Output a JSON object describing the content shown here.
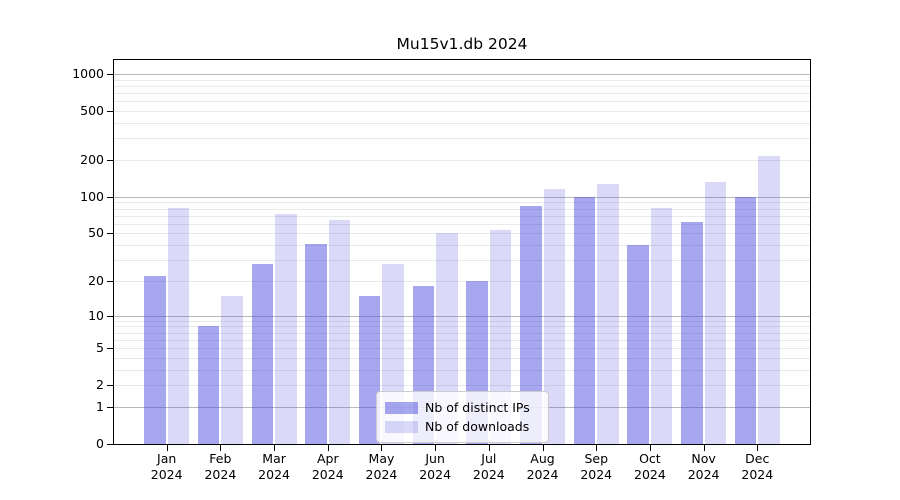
{
  "chart_data": {
    "type": "bar",
    "title": "Mu15v1.db 2024",
    "categories": [
      "Jan 2024",
      "Feb 2024",
      "Mar 2024",
      "Apr 2024",
      "May 2024",
      "Jun 2024",
      "Jul 2024",
      "Aug 2024",
      "Sep 2024",
      "Oct 2024",
      "Nov 2024",
      "Dec 2024"
    ],
    "series": [
      {
        "name": "Nb of distinct IPs",
        "color": "rgba(68,68,221,0.47)",
        "values": [
          22,
          8,
          28,
          41,
          15,
          18,
          20,
          84,
          100,
          40,
          62,
          100
        ]
      },
      {
        "name": "Nb of downloads",
        "color": "rgba(68,68,221,0.20)",
        "values": [
          81,
          15,
          72,
          65,
          28,
          50,
          53,
          115,
          127,
          81,
          132,
          215
        ]
      }
    ],
    "xlabel": "",
    "ylabel": "",
    "y_axis": {
      "scale": "log1p",
      "ticks": [
        0,
        1,
        2,
        5,
        10,
        20,
        50,
        100,
        200,
        500,
        1000
      ],
      "major_gridlines": [
        1,
        10,
        100,
        1000
      ],
      "minor_gridline_decades": [
        1,
        10,
        100
      ],
      "ylim": [
        0,
        1320
      ]
    },
    "grid": "on",
    "legend": {
      "position": "lower-center",
      "entries": [
        "Nb of distinct IPs",
        "Nb of downloads"
      ]
    },
    "colors": {
      "major_grid": "#b9b9b9",
      "minor_grid": "#e9e9e9",
      "spine": "#000000",
      "text": "#000000",
      "legend_border": "#cccccc",
      "legend_background": "rgba(255,255,255,0.8)"
    }
  }
}
